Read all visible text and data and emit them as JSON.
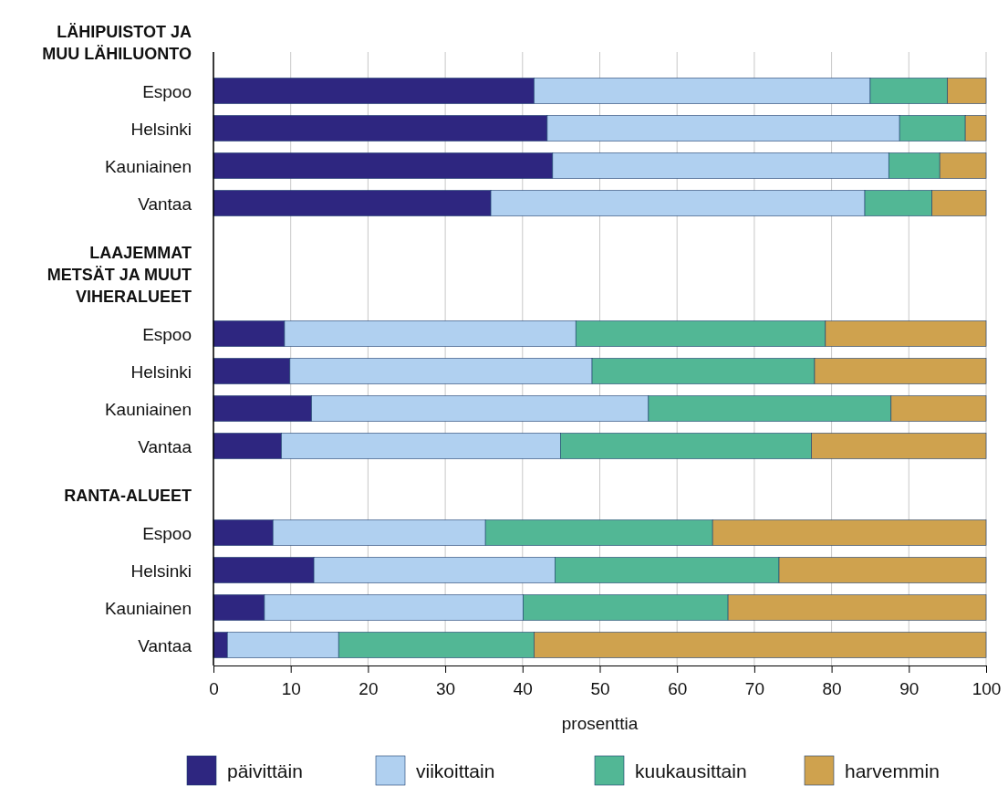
{
  "chart_data": {
    "type": "bar",
    "orientation": "horizontal",
    "stacked": true,
    "categories": [
      "LÄHIPUISTOT JA MUU LÄHILUONTO",
      "Espoo",
      "Helsinki",
      "Kauniainen",
      "Vantaa",
      "LAAJEMMAT METSÄT JA MUUT VIHERALUEET",
      "Espoo",
      "Helsinki",
      "Kauniainen",
      "Vantaa",
      "RANTA-ALUEET",
      "Espoo",
      "Helsinki",
      "Kauniainen",
      "Vantaa"
    ],
    "series": [
      {
        "name": "päivittäin",
        "color": "#2e2680",
        "values": [
          null,
          41.5,
          43.2,
          43.9,
          35.9,
          null,
          9.2,
          9.9,
          12.7,
          8.8,
          null,
          7.7,
          13.0,
          6.6,
          1.8
        ]
      },
      {
        "name": "viikoittain",
        "color": "#b0d0f0",
        "values": [
          null,
          43.5,
          45.6,
          43.5,
          48.4,
          null,
          37.7,
          39.1,
          43.6,
          36.1,
          null,
          27.5,
          31.2,
          33.5,
          14.4
        ]
      },
      {
        "name": "kuukausittain",
        "color": "#52b795",
        "values": [
          null,
          10.0,
          8.5,
          6.6,
          8.7,
          null,
          32.3,
          28.8,
          31.4,
          32.5,
          null,
          29.4,
          29.0,
          26.5,
          25.3
        ]
      },
      {
        "name": "harvemmin",
        "color": "#cfa24e",
        "values": [
          null,
          5.0,
          2.7,
          6.0,
          7.0,
          null,
          20.8,
          22.2,
          12.3,
          22.6,
          null,
          35.4,
          26.8,
          33.4,
          58.5
        ]
      }
    ],
    "xlim": [
      0,
      100
    ],
    "xticks": [
      0,
      10,
      20,
      30,
      40,
      50,
      60,
      70,
      80,
      90,
      100
    ],
    "xlabel": "prosenttia",
    "grid": "x",
    "legend": "bottom"
  }
}
